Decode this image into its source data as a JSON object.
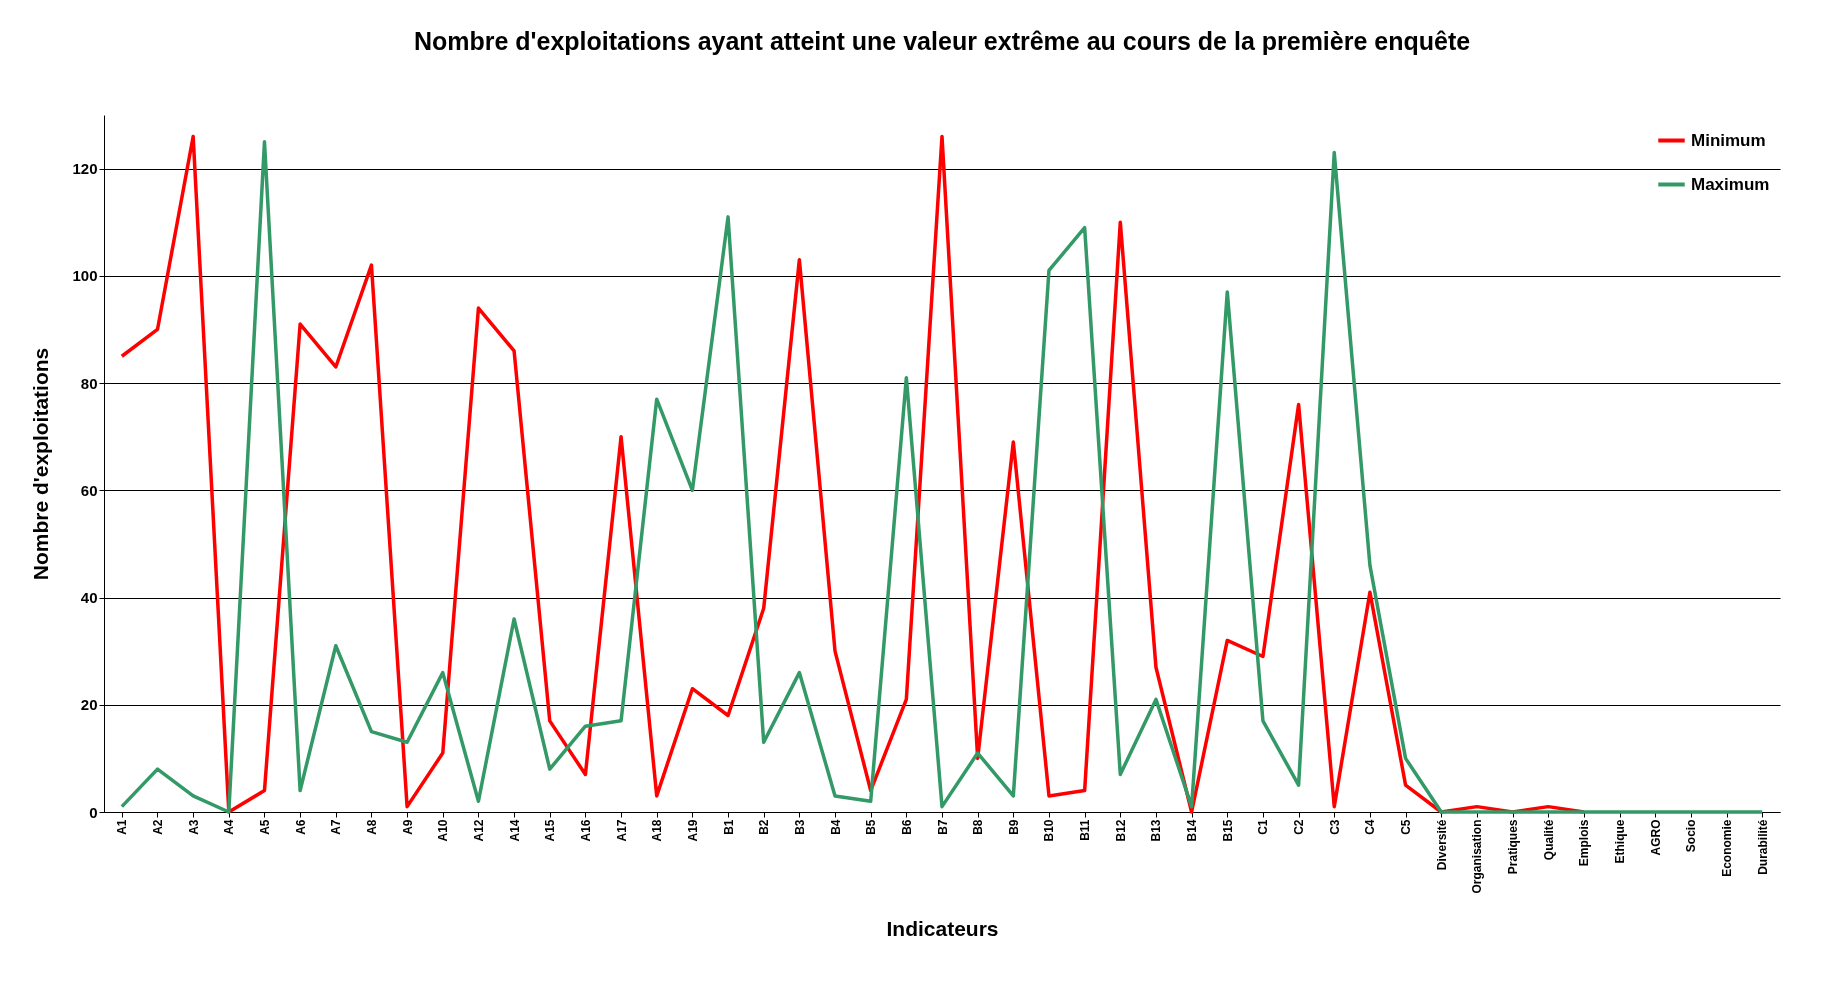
{
  "chart_data": {
    "type": "line",
    "title": "Nombre d'exploitations ayant atteint une valeur extrême au cours de la première enquête",
    "xlabel": "Indicateurs",
    "ylabel": "Nombre d'exploitations",
    "categories": [
      "A1",
      "A2",
      "A3",
      "A4",
      "A5",
      "A6",
      "A7",
      "A8",
      "A9",
      "A10",
      "A12",
      "A14",
      "A15",
      "A16",
      "A17",
      "A18",
      "A19",
      "B1",
      "B2",
      "B3",
      "B4",
      "B5",
      "B6",
      "B7",
      "B8",
      "B9",
      "B10",
      "B11",
      "B12",
      "B13",
      "B14",
      "B15",
      "C1",
      "C2",
      "C3",
      "C4",
      "C5",
      "Diversité",
      "Organisation",
      "Pratiques",
      "Qualité",
      "Emplois",
      "Ethique",
      "AGRO",
      "Socio",
      "Economie",
      "Durabilité"
    ],
    "series": [
      {
        "name": "Minimum",
        "color": "#ff0000",
        "values": [
          85,
          90,
          126,
          0,
          4,
          91,
          83,
          102,
          1,
          11,
          94,
          86,
          17,
          7,
          70,
          3,
          23,
          18,
          38,
          103,
          30,
          4,
          21,
          126,
          10,
          69,
          3,
          4,
          110,
          27,
          0,
          32,
          29,
          76,
          1,
          41,
          5,
          0,
          1,
          0,
          1,
          0,
          null,
          null,
          null,
          null,
          null
        ]
      },
      {
        "name": "Maximum",
        "color": "#339966",
        "values": [
          1,
          8,
          3,
          0,
          125,
          4,
          31,
          15,
          13,
          26,
          2,
          36,
          8,
          16,
          17,
          77,
          60,
          111,
          13,
          26,
          3,
          2,
          81,
          1,
          11,
          3,
          101,
          109,
          7,
          21,
          1,
          97,
          17,
          5,
          123,
          46,
          10,
          0,
          0,
          0,
          0,
          0,
          0,
          0,
          0,
          0,
          0
        ]
      }
    ],
    "ylim": [
      0,
      130
    ],
    "yticks": [
      0,
      20,
      40,
      60,
      80,
      100,
      120
    ],
    "grid": "y",
    "legend": "top right",
    "marker": "none",
    "line_style": "solid"
  }
}
